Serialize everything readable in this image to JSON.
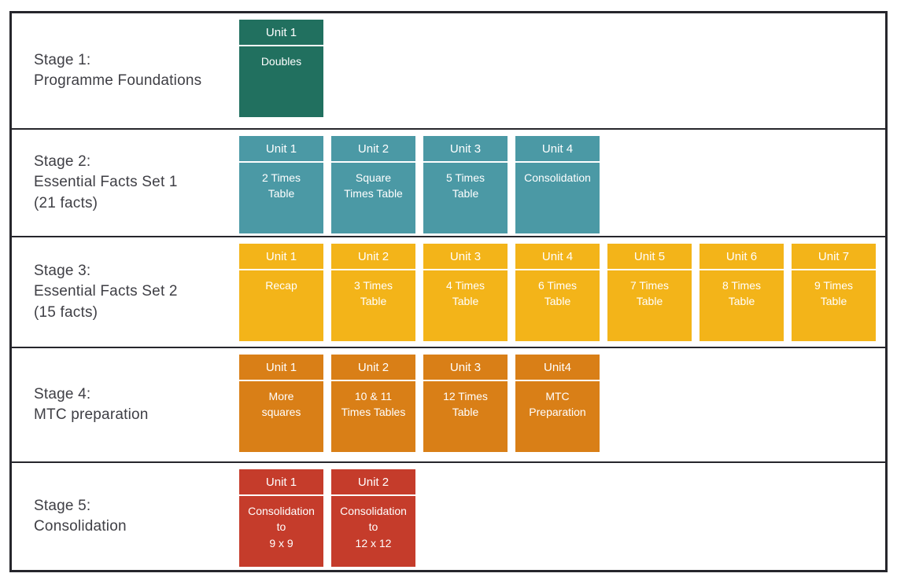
{
  "page": {
    "background_color": "#ffffff",
    "frame_border_color": "#26262c",
    "label_text_color": "#3f3f45",
    "card_text_color": "#ffffff"
  },
  "stages": [
    {
      "label": "Stage 1:\nProgramme Foundations",
      "color": "#21705f",
      "units": [
        {
          "title": "Unit 1",
          "body": "Doubles"
        }
      ]
    },
    {
      "label": "Stage 2:\nEssential Facts Set 1\n(21 facts)",
      "color": "#4b99a5",
      "units": [
        {
          "title": "Unit 1",
          "body": "2 Times\nTable"
        },
        {
          "title": "Unit 2",
          "body": "Square\nTimes Table"
        },
        {
          "title": "Unit 3",
          "body": "5 Times\nTable"
        },
        {
          "title": "Unit 4",
          "body": "Consolidation"
        }
      ]
    },
    {
      "label": "Stage 3:\nEssential Facts Set 2\n(15 facts)",
      "color": "#f3b419",
      "units": [
        {
          "title": "Unit 1",
          "body": "Recap"
        },
        {
          "title": "Unit 2",
          "body": "3 Times\nTable"
        },
        {
          "title": "Unit 3",
          "body": "4 Times\nTable"
        },
        {
          "title": "Unit 4",
          "body": "6 Times\nTable"
        },
        {
          "title": "Unit 5",
          "body": "7 Times\nTable"
        },
        {
          "title": "Unit 6",
          "body": "8 Times\nTable"
        },
        {
          "title": "Unit 7",
          "body": "9 Times\nTable"
        }
      ]
    },
    {
      "label": "Stage 4:\nMTC preparation",
      "color": "#d97f17",
      "units": [
        {
          "title": "Unit 1",
          "body": "More\nsquares"
        },
        {
          "title": "Unit 2",
          "body": "10 & 11\nTimes Tables"
        },
        {
          "title": "Unit 3",
          "body": "12 Times\nTable"
        },
        {
          "title": "Unit4",
          "body": "MTC\nPreparation"
        }
      ]
    },
    {
      "label": "Stage 5:\nConsolidation",
      "color": "#c53c2b",
      "units": [
        {
          "title": "Unit 1",
          "body": "Consolidation\nto\n9 x 9"
        },
        {
          "title": "Unit 2",
          "body": "Consolidation\nto\n12 x 12"
        }
      ]
    }
  ]
}
